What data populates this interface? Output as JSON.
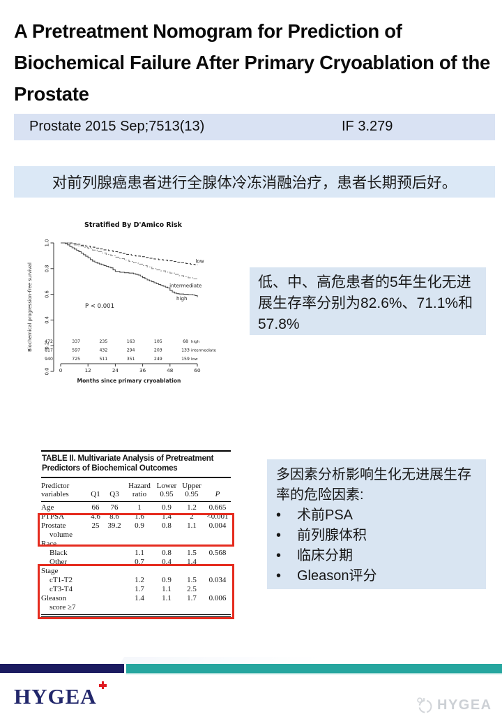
{
  "slide": {
    "title": "A Pretreatment Nomogram for Prediction of Biochemical Failure After Primary Cryoablation of the Prostate",
    "citation": "Prostate 2015 Sep;7513(13)",
    "impact_factor": "IF 3.279",
    "summary": "对前列腺癌患者进行全腺体冷冻消融治疗，患者长期预后好。"
  },
  "chart_data": {
    "type": "line",
    "subtype": "kaplan-meier-step",
    "title": "Stratified By D'Amico Risk",
    "xlabel": "Months since primary cryoablation",
    "ylabel": "Biochemical progression-free survival",
    "p_annotation": "P < 0.001",
    "x_ticks": [
      0,
      12,
      24,
      36,
      48,
      60
    ],
    "y_ticks": [
      "0.0",
      "0.2",
      "0.4",
      "0.6",
      "0.8",
      "1.0"
    ],
    "xlim": [
      0,
      60
    ],
    "ylim": [
      0.0,
      1.0
    ],
    "legend_position": "curve-end-labels",
    "grid": false,
    "series": [
      {
        "name": "low",
        "style": "dashed",
        "color": "#3a3a3a",
        "label_at": [
          59.2,
          0.845
        ],
        "five_year_survival_pct": 82.6,
        "points": [
          [
            0,
            1.0
          ],
          [
            4,
            1.0
          ],
          [
            5,
            0.995
          ],
          [
            7,
            0.99
          ],
          [
            9,
            0.982
          ],
          [
            11,
            0.975
          ],
          [
            13,
            0.967
          ],
          [
            15,
            0.96
          ],
          [
            17,
            0.953
          ],
          [
            19,
            0.946
          ],
          [
            21,
            0.94
          ],
          [
            23,
            0.932
          ],
          [
            25,
            0.925
          ],
          [
            27,
            0.918
          ],
          [
            29,
            0.911
          ],
          [
            31,
            0.905
          ],
          [
            33,
            0.898
          ],
          [
            35,
            0.893
          ],
          [
            37,
            0.887
          ],
          [
            39,
            0.881
          ],
          [
            41,
            0.875
          ],
          [
            43,
            0.87
          ],
          [
            45,
            0.866
          ],
          [
            47,
            0.861
          ],
          [
            49,
            0.856
          ],
          [
            51,
            0.85
          ],
          [
            53,
            0.845
          ],
          [
            55,
            0.84
          ],
          [
            57,
            0.834
          ],
          [
            59,
            0.829
          ],
          [
            60,
            0.826
          ]
        ]
      },
      {
        "name": "intermediate",
        "style": "dashdot",
        "color": "#8d8d8d",
        "label_at": [
          47.8,
          0.655
        ],
        "five_year_survival_pct": 71.1,
        "points": [
          [
            0,
            1.0
          ],
          [
            3,
            1.0
          ],
          [
            4,
            0.993
          ],
          [
            6,
            0.985
          ],
          [
            8,
            0.976
          ],
          [
            10,
            0.966
          ],
          [
            12,
            0.955
          ],
          [
            14,
            0.944
          ],
          [
            16,
            0.933
          ],
          [
            18,
            0.922
          ],
          [
            20,
            0.911
          ],
          [
            22,
            0.9
          ],
          [
            24,
            0.889
          ],
          [
            26,
            0.878
          ],
          [
            28,
            0.867
          ],
          [
            30,
            0.856
          ],
          [
            32,
            0.845
          ],
          [
            34,
            0.835
          ],
          [
            36,
            0.824
          ],
          [
            38,
            0.813
          ],
          [
            40,
            0.8
          ],
          [
            42,
            0.79
          ],
          [
            44,
            0.782
          ],
          [
            46,
            0.773
          ],
          [
            48,
            0.765
          ],
          [
            50,
            0.755
          ],
          [
            52,
            0.745
          ],
          [
            54,
            0.737
          ],
          [
            56,
            0.729
          ],
          [
            58,
            0.72
          ],
          [
            60,
            0.711
          ]
        ]
      },
      {
        "name": "high",
        "style": "solid",
        "color": "#4a4a4a",
        "label_at": [
          50.8,
          0.555
        ],
        "five_year_survival_pct": 57.8,
        "points": [
          [
            0,
            1.0
          ],
          [
            2,
            0.995
          ],
          [
            3,
            0.985
          ],
          [
            4,
            0.972
          ],
          [
            5,
            0.962
          ],
          [
            6,
            0.952
          ],
          [
            7,
            0.942
          ],
          [
            8,
            0.932
          ],
          [
            9,
            0.92
          ],
          [
            10,
            0.908
          ],
          [
            11,
            0.896
          ],
          [
            12,
            0.884
          ],
          [
            13,
            0.87
          ],
          [
            14,
            0.858
          ],
          [
            15,
            0.85
          ],
          [
            16,
            0.843
          ],
          [
            17,
            0.836
          ],
          [
            18,
            0.83
          ],
          [
            19,
            0.824
          ],
          [
            20,
            0.818
          ],
          [
            21,
            0.812
          ],
          [
            22,
            0.806
          ],
          [
            23,
            0.79
          ],
          [
            24,
            0.778
          ],
          [
            26,
            0.772
          ],
          [
            28,
            0.768
          ],
          [
            30,
            0.765
          ],
          [
            32,
            0.76
          ],
          [
            33,
            0.755
          ],
          [
            34,
            0.75
          ],
          [
            35,
            0.742
          ],
          [
            36,
            0.73
          ],
          [
            37,
            0.72
          ],
          [
            38,
            0.712
          ],
          [
            39,
            0.705
          ],
          [
            40,
            0.698
          ],
          [
            41,
            0.69
          ],
          [
            42,
            0.683
          ],
          [
            43,
            0.676
          ],
          [
            44,
            0.67
          ],
          [
            45,
            0.663
          ],
          [
            46,
            0.656
          ],
          [
            47,
            0.65
          ],
          [
            48,
            0.63
          ],
          [
            49,
            0.618
          ],
          [
            50,
            0.61
          ],
          [
            51,
            0.605
          ],
          [
            52,
            0.602
          ],
          [
            54,
            0.6
          ],
          [
            56,
            0.598
          ],
          [
            58,
            0.595
          ],
          [
            59,
            0.59
          ],
          [
            60,
            0.578
          ]
        ]
      }
    ],
    "at_risk": {
      "months": [
        0,
        12,
        24,
        36,
        48,
        60
      ],
      "rows": [
        {
          "label": "high",
          "values": [
            472,
            337,
            235,
            163,
            105,
            68
          ]
        },
        {
          "label": "intermediate",
          "values": [
            817,
            597,
            432,
            294,
            203,
            133
          ]
        },
        {
          "label": "low",
          "values": [
            940,
            725,
            511,
            351,
            249,
            159
          ]
        }
      ]
    }
  },
  "finding1": {
    "text": "低、中、高危患者的5年生化无进展生存率分别为82.6%、71.1%和57.8%"
  },
  "table": {
    "title": "TABLE II.  Multivariate Analysis of Pretreatment Predictors of Biochemical Outcomes",
    "columns": [
      {
        "l1": "Predictor",
        "l2": "variables",
        "align": "left"
      },
      {
        "l1": "",
        "l2": "Q1"
      },
      {
        "l1": "",
        "l2": "Q3"
      },
      {
        "l1": "Hazard",
        "l2": "ratio"
      },
      {
        "l1": "Lower",
        "l2": "0.95"
      },
      {
        "l1": "Upper",
        "l2": "0.95"
      },
      {
        "l1": "",
        "l2": "P",
        "italic": true
      }
    ],
    "rows": [
      {
        "label": "Age",
        "indent": 0,
        "cells": [
          "66",
          "76",
          "1",
          "0.9",
          "1.2",
          "0.665"
        ]
      },
      {
        "label": "PTPSA",
        "indent": 0,
        "cells": [
          "4.6",
          "8.6",
          "1.6",
          "1.4",
          "2",
          "<0.001"
        ]
      },
      {
        "label": "Prostate",
        "indent": 0,
        "cells": [
          "25",
          "39.2",
          "0.9",
          "0.8",
          "1.1",
          "0.004"
        ]
      },
      {
        "label": "volume",
        "indent": 1,
        "cells": [
          "",
          "",
          "",
          "",
          "",
          ""
        ]
      },
      {
        "label": "Race",
        "indent": 0,
        "cells": [
          "",
          "",
          "",
          "",
          "",
          ""
        ]
      },
      {
        "label": "Black",
        "indent": 1,
        "cells": [
          "",
          "",
          "1.1",
          "0.8",
          "1.5",
          "0.568"
        ]
      },
      {
        "label": "Other",
        "indent": 1,
        "cells": [
          "",
          "",
          "0.7",
          "0.4",
          "1.4",
          ""
        ]
      },
      {
        "label": "Stage",
        "indent": 0,
        "cells": [
          "",
          "",
          "",
          "",
          "",
          ""
        ]
      },
      {
        "label": "cT1-T2",
        "indent": 1,
        "cells": [
          "",
          "",
          "1.2",
          "0.9",
          "1.5",
          "0.034"
        ]
      },
      {
        "label": "cT3-T4",
        "indent": 1,
        "cells": [
          "",
          "",
          "1.7",
          "1.1",
          "2.5",
          ""
        ]
      },
      {
        "label": "Gleason",
        "indent": 0,
        "cells": [
          "",
          "",
          "1.4",
          "1.1",
          "1.7",
          "0.006"
        ]
      },
      {
        "label": "score ≥7",
        "indent": 1,
        "cells": [
          "",
          "",
          "",
          "",
          "",
          ""
        ]
      }
    ],
    "highlight_boxes": [
      "PTPSA + Prostate volume",
      "Stage cT1-T2 cT3-T4 Gleason score ≥7"
    ]
  },
  "finding2": {
    "heading": "多因素分析影响生化无进展生存率的危险因素:",
    "bullets": [
      "术前PSA",
      "前列腺体积",
      "临床分期",
      "Gleason评分"
    ]
  },
  "footer": {
    "logo_text": "HYGEA",
    "watermark_text": "HYGEA"
  },
  "colors": {
    "citation_bar_blue": "#d9e2f3",
    "summary_bar_blue": "#dbe8f6",
    "finding_box_blue": "#d9e5f2",
    "footer_navy": "#1b1b60",
    "footer_teal": "#26a69f",
    "highlight_red": "#e52b1e",
    "logo_navy": "#22276b",
    "logo_cross_red": "#e01b22"
  }
}
